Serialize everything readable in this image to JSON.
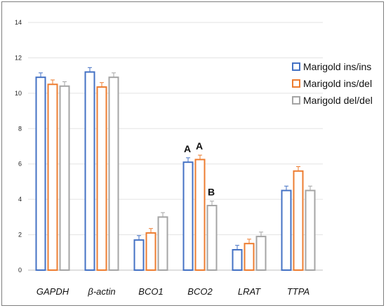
{
  "chart_data": {
    "type": "bar",
    "ylim": [
      0,
      14
    ],
    "yticks": [
      "0",
      "2",
      "4",
      "6",
      "8",
      "10",
      "12",
      "14"
    ],
    "categories": [
      "GAPDH",
      "β-actin",
      "BCO1",
      "BCO2",
      "LRAT",
      "TTPA"
    ],
    "grid": true,
    "legend_position": "right",
    "series": [
      {
        "name": "Marigold ins/ins",
        "color": "#4472c4",
        "values": [
          10.9,
          11.2,
          1.7,
          6.1,
          1.15,
          4.5
        ],
        "errors": [
          0.25,
          0.25,
          0.25,
          0.25,
          0.25,
          0.25
        ]
      },
      {
        "name": "Marigold ins/del",
        "color": "#ed7d31",
        "values": [
          10.5,
          10.35,
          2.1,
          6.25,
          1.5,
          5.6
        ],
        "errors": [
          0.25,
          0.25,
          0.25,
          0.25,
          0.25,
          0.25
        ]
      },
      {
        "name": "Marigold del/del",
        "color": "#a5a5a5",
        "values": [
          10.4,
          10.9,
          3.0,
          3.65,
          1.9,
          4.5
        ],
        "errors": [
          0.25,
          0.25,
          0.25,
          0.25,
          0.25,
          0.25
        ]
      }
    ],
    "annotations": [
      {
        "category": "BCO2",
        "series": 0,
        "text": "A"
      },
      {
        "category": "BCO2",
        "series": 1,
        "text": "A"
      },
      {
        "category": "BCO2",
        "series": 2,
        "text": "B"
      }
    ]
  }
}
